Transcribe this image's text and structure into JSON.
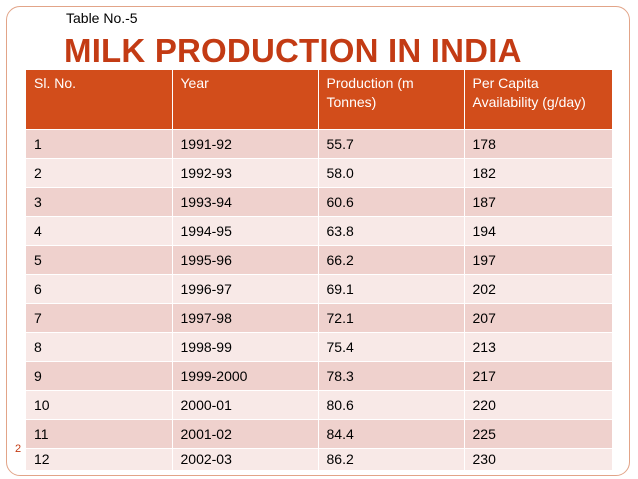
{
  "slide": {
    "table_label": "Table No.-5",
    "title": "MILK PRODUCTION IN INDIA",
    "slide_number": "2"
  },
  "table": {
    "headers": [
      "Sl. No.",
      "Year",
      "Production (m Tonnes)",
      "Per Capita Availability (g/day)"
    ],
    "rows": [
      [
        "1",
        "1991-92",
        "55.7",
        "178"
      ],
      [
        "2",
        "1992-93",
        "58.0",
        "182"
      ],
      [
        "3",
        "1993-94",
        "60.6",
        "187"
      ],
      [
        "4",
        "1994-95",
        "63.8",
        "194"
      ],
      [
        "5",
        "1995-96",
        "66.2",
        "197"
      ],
      [
        "6",
        "1996-97",
        "69.1",
        "202"
      ],
      [
        "7",
        "1997-98",
        "72.1",
        "207"
      ],
      [
        "8",
        "1998-99",
        "75.4",
        "213"
      ],
      [
        "9",
        "1999-2000",
        "78.3",
        "217"
      ],
      [
        "10",
        "2000-01",
        "80.6",
        "220"
      ],
      [
        "11",
        "2001-02",
        "84.4",
        "225"
      ],
      [
        "12",
        "2002-03",
        "86.2",
        "230"
      ]
    ]
  },
  "colors": {
    "accent": "#c33b14",
    "header_bg": "#d24d1b",
    "row_odd": "#efd1cd",
    "row_even": "#f8e9e7"
  }
}
